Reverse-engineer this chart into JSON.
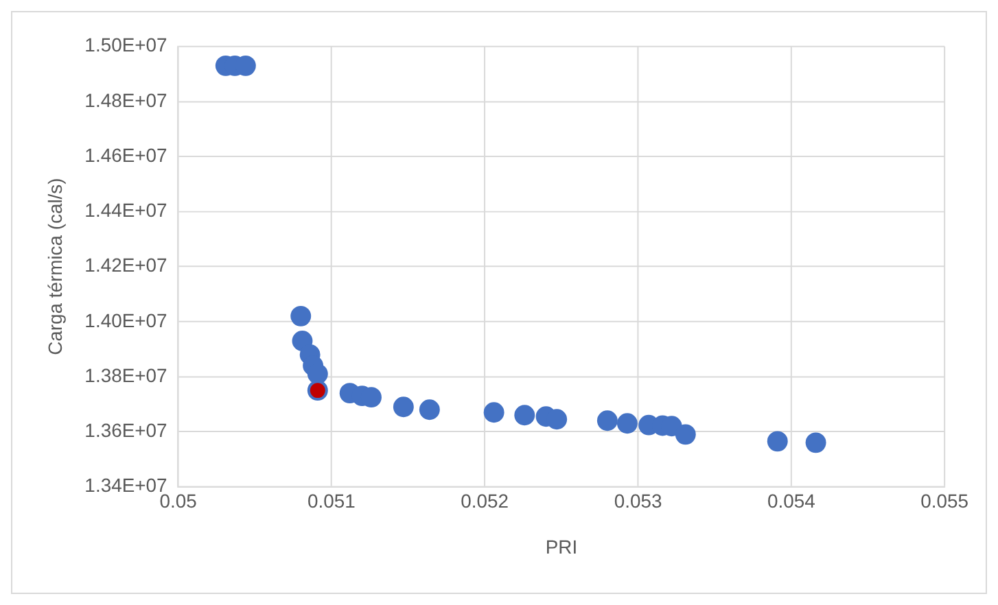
{
  "chart_data": {
    "type": "scatter",
    "xlabel": "PRI",
    "ylabel": "Carga térmica (cal/s)",
    "series": [
      {
        "color": "#4472c4",
        "x": [
          0.05031,
          0.05037,
          0.05044,
          0.0508,
          0.05081,
          0.05086,
          0.05088,
          0.05091,
          0.05091,
          0.05112,
          0.0512,
          0.05126,
          0.05147,
          0.05164,
          0.05206,
          0.05226,
          0.0524,
          0.05247,
          0.0528,
          0.05293,
          0.05307,
          0.05316,
          0.05322,
          0.05331,
          0.05391,
          0.05416
        ],
        "values": [
          14930000,
          14930000,
          14930000,
          14020000,
          13930000,
          13880000,
          13840000,
          13810000,
          13750000,
          13740000,
          13730000,
          13725000,
          13690000,
          13680000,
          13670000,
          13660000,
          13655000,
          13645000,
          13640000,
          13630000,
          13624000,
          13622000,
          13620000,
          13590000,
          13565000,
          13560000
        ]
      },
      {
        "color": "#c00000",
        "x": [
          0.05091
        ],
        "values": [
          13750000
        ]
      }
    ],
    "xlim": [
      0.05,
      0.055
    ],
    "xticks": [
      0.05,
      0.051,
      0.052,
      0.053,
      0.054,
      0.055
    ],
    "ylim": [
      13400000,
      15000000
    ],
    "yticks": [
      {
        "value": 13400000,
        "label": "1.34E+07"
      },
      {
        "value": 13600000,
        "label": "1.36E+07"
      },
      {
        "value": 13800000,
        "label": "1.38E+07"
      },
      {
        "value": 14000000,
        "label": "1.40E+07"
      },
      {
        "value": 14200000,
        "label": "1.42E+07"
      },
      {
        "value": 14400000,
        "label": "1.44E+07"
      },
      {
        "value": 14600000,
        "label": "1.46E+07"
      },
      {
        "value": 14800000,
        "label": "1.48E+07"
      },
      {
        "value": 15000000,
        "label": "1.50E+07"
      }
    ],
    "grid": true,
    "legend": false,
    "marker": "circle"
  }
}
